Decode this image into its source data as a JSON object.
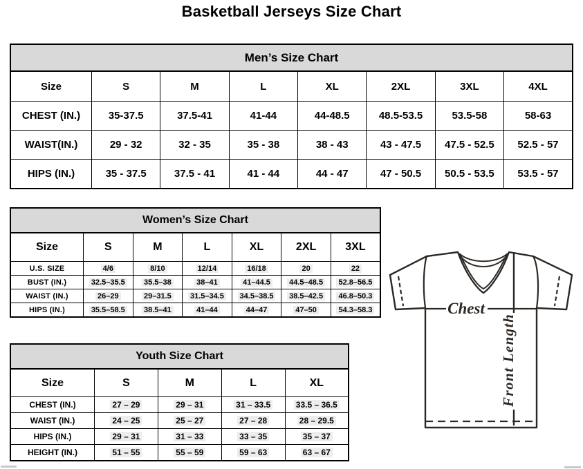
{
  "page_title": "Basketball Jerseys Size Chart",
  "tables": {
    "mens": {
      "title": "Men’s Size Chart",
      "columns": [
        "Size",
        "S",
        "M",
        "L",
        "XL",
        "2XL",
        "3XL",
        "4XL"
      ],
      "rows": [
        {
          "label": "CHEST (IN.)",
          "values": [
            "35-37.5",
            "37.5-41",
            "41-44",
            "44-48.5",
            "48.5-53.5",
            "53.5-58",
            "58-63"
          ]
        },
        {
          "label": "WAIST(IN.)",
          "values": [
            "29 - 32",
            "32 - 35",
            "35 - 38",
            "38 - 43",
            "43 - 47.5",
            "47.5 - 52.5",
            "52.5 - 57"
          ]
        },
        {
          "label": "HIPS (IN.)",
          "values": [
            "35 - 37.5",
            "37.5 - 41",
            "41 - 44",
            "44 - 47",
            "47 - 50.5",
            "50.5 - 53.5",
            "53.5 - 57"
          ]
        }
      ]
    },
    "womens": {
      "title": "Women’s Size Chart",
      "columns": [
        "Size",
        "S",
        "M",
        "L",
        "XL",
        "2XL",
        "3XL"
      ],
      "rows": [
        {
          "label": "U.S. SIZE",
          "values": [
            "4/6",
            "8/10",
            "12/14",
            "16/18",
            "20",
            "22"
          ]
        },
        {
          "label": "BUST (IN.)",
          "values": [
            "32.5–35.5",
            "35.5–38",
            "38–41",
            "41–44.5",
            "44.5–48.5",
            "52.8–56.5"
          ]
        },
        {
          "label": "WAIST (IN.)",
          "values": [
            "26–29",
            "29–31.5",
            "31.5–34.5",
            "34.5–38.5",
            "38.5–42.5",
            "46.8–50.3"
          ]
        },
        {
          "label": "HIPS (IN.)",
          "values": [
            "35.5–58.5",
            "38.5–41",
            "41–44",
            "44–47",
            "47–50",
            "54.3–58.3"
          ]
        }
      ]
    },
    "youth": {
      "title": "Youth Size Chart",
      "columns": [
        "Size",
        "S",
        "M",
        "L",
        "XL"
      ],
      "rows": [
        {
          "label": "CHEST (IN.)",
          "values": [
            "27 – 29",
            "29 – 31",
            "31 – 33.5",
            "33.5 – 36.5"
          ]
        },
        {
          "label": "WAIST (IN.)",
          "values": [
            "24 – 25",
            "25 – 27",
            "27 – 28",
            "28 – 29.5"
          ]
        },
        {
          "label": "HIPS (IN.)",
          "values": [
            "29 – 31",
            "31 – 33",
            "33 – 35",
            "35 – 37"
          ]
        },
        {
          "label": "HEIGHT (IN.)",
          "values": [
            "51 – 55",
            "55 – 59",
            "59 – 63",
            "63 – 67"
          ]
        }
      ]
    }
  },
  "diagram": {
    "chest_label": "Chest",
    "front_length_label": "Front Length"
  },
  "colors": {
    "header_band": "#d9d9d9",
    "table_border": "#000000",
    "line_art": "#2e2824",
    "highlight": "#ededed"
  }
}
